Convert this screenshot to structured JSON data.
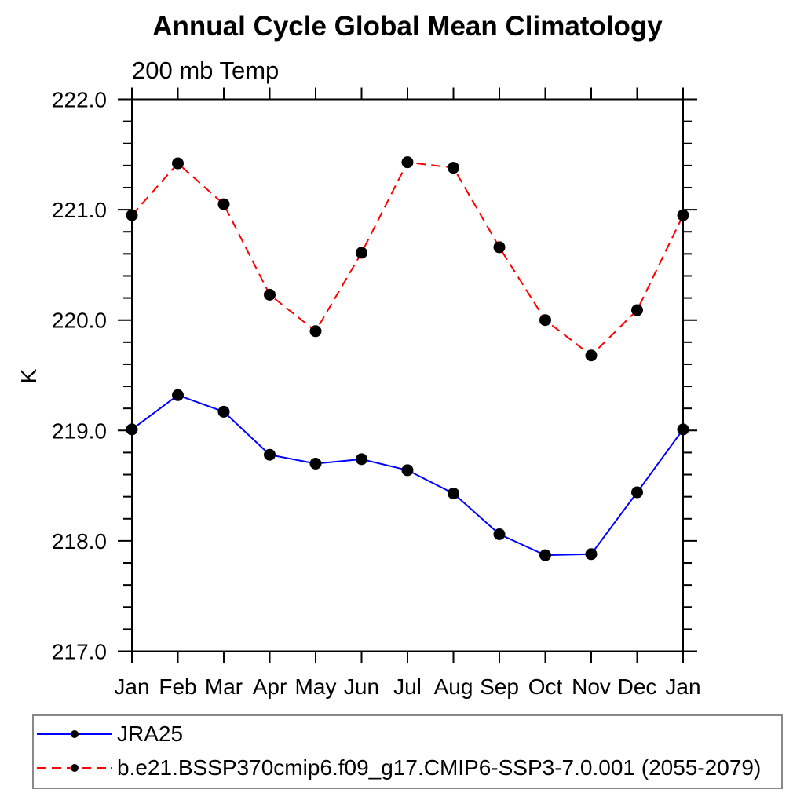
{
  "chart_data": {
    "type": "line",
    "title": "Annual Cycle Global Mean Climatology",
    "subtitle": "200 mb Temp",
    "ylabel": "K",
    "xlabel": "",
    "categories": [
      "Jan",
      "Feb",
      "Mar",
      "Apr",
      "May",
      "Jun",
      "Jul",
      "Aug",
      "Sep",
      "Oct",
      "Nov",
      "Dec",
      "Jan"
    ],
    "ylim": [
      217.0,
      222.0
    ],
    "ytick_labels": [
      "217.0",
      "218.0",
      "219.0",
      "220.0",
      "221.0",
      "222.0"
    ],
    "ytick_major_step": 1.0,
    "ytick_minor_step": 0.2,
    "grid": false,
    "legend_position": "bottom-left-box",
    "series": [
      {
        "name": "JRA25",
        "color": "#0000ff",
        "line_style": "solid",
        "marker": "filled-circle",
        "marker_color": "#000000",
        "values": [
          219.01,
          219.32,
          219.17,
          218.78,
          218.7,
          218.74,
          218.64,
          218.43,
          218.06,
          217.87,
          217.88,
          218.44,
          219.01
        ]
      },
      {
        "name": "b.e21.BSSP370cmip6.f09_g17.CMIP6-SSP3-7.0.001 (2055-2079)",
        "color": "#ff0000",
        "line_style": "dashed",
        "marker": "filled-circle",
        "marker_color": "#000000",
        "values": [
          220.95,
          221.42,
          221.05,
          220.23,
          219.9,
          220.61,
          221.43,
          221.38,
          220.66,
          220.0,
          219.68,
          220.09,
          220.95
        ]
      }
    ]
  },
  "colors": {
    "background": "#ffffff",
    "axis": "#000000",
    "text": "#000000",
    "legend_border": "#888888"
  }
}
